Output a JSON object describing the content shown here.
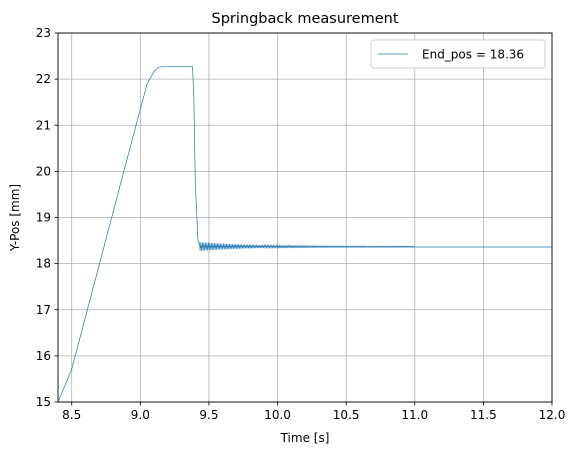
{
  "chart_data": {
    "type": "line",
    "title": "Springback measurement",
    "xlabel": "Time [s]",
    "ylabel": "Y-Pos [mm]",
    "xlim": [
      8.4,
      12.0
    ],
    "ylim": [
      15,
      23
    ],
    "xticks": [
      8.5,
      9.0,
      9.5,
      10.0,
      10.5,
      11.0,
      11.5,
      12.0
    ],
    "xtick_labels": [
      "8.5",
      "9.0",
      "9.5",
      "10.0",
      "10.5",
      "11.0",
      "11.5",
      "12.0"
    ],
    "yticks": [
      15,
      16,
      17,
      18,
      19,
      20,
      21,
      22,
      23
    ],
    "ytick_labels": [
      "15",
      "16",
      "17",
      "18",
      "19",
      "20",
      "21",
      "22",
      "23"
    ],
    "grid": true,
    "legend_position": "top-right",
    "series": [
      {
        "name": "End_pos = 18.36",
        "color": "#1f77b4",
        "x": [
          8.4,
          8.5,
          8.6,
          8.7,
          8.8,
          8.9,
          9.0,
          9.05,
          9.1,
          9.13,
          9.16,
          9.2,
          9.3,
          9.38,
          9.39,
          9.4,
          9.42,
          9.44,
          9.46,
          9.5,
          9.55,
          9.6,
          9.7,
          9.8,
          9.9,
          10.0,
          10.5,
          11.0,
          11.5,
          12.0
        ],
        "y": [
          15.0,
          15.71,
          16.84,
          17.97,
          19.1,
          20.23,
          21.35,
          21.9,
          22.17,
          22.25,
          22.27,
          22.27,
          22.27,
          22.27,
          21.6,
          19.8,
          18.5,
          18.35,
          18.38,
          18.36,
          18.38,
          18.37,
          18.38,
          18.37,
          18.37,
          18.36,
          18.36,
          18.36,
          18.36,
          18.36
        ]
      }
    ]
  }
}
